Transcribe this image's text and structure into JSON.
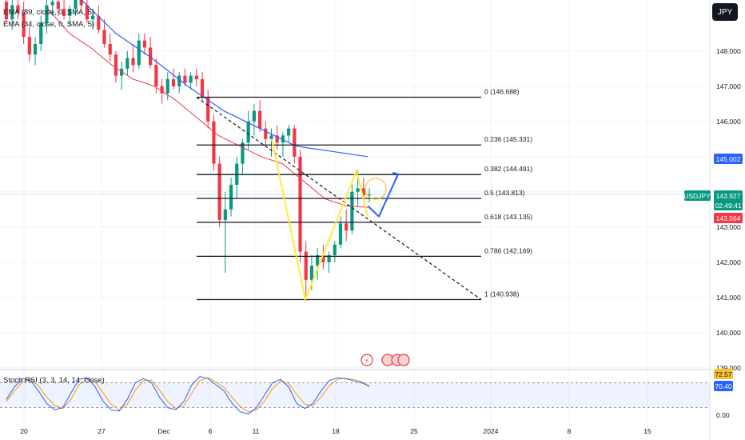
{
  "indicators": {
    "ema1": "EMA (89, close, 0, SMA, 5)",
    "ema2": "EMA (34, close, 0, SMA, 5)",
    "stoch": "Stoch RSI (3, 3, 14, 14, close)"
  },
  "currency_button": "JPY",
  "symbol": "USDJPY",
  "price_badges": {
    "last": "143.927",
    "countdown": "02:49:41",
    "ema_blue": "145.002",
    "ema_red": "143.564",
    "last_color": "#089981",
    "ema_blue_color": "#2962ff",
    "ema_red_color": "#f23645"
  },
  "stoch_badges": {
    "k": "72.57",
    "d": "70.40"
  },
  "chart_data": {
    "type": "candlestick",
    "y_axis": {
      "range": [
        138.95,
        149.45
      ],
      "ticks": [
        "139.000",
        "140.000",
        "141.000",
        "142.000",
        "143.000",
        "146.000",
        "147.000",
        "148.000"
      ]
    },
    "x_axis_labels": [
      "20",
      "27",
      "Dec",
      "6",
      "11",
      "18",
      "25",
      "2024",
      "8",
      "15"
    ],
    "fib_levels": [
      {
        "ratio": "0",
        "label": "0 (146.688)",
        "price": 146.688
      },
      {
        "ratio": "0.236",
        "label": "0.236 (145.331)",
        "price": 145.331
      },
      {
        "ratio": "0.382",
        "label": "0.382 (144.491)",
        "price": 144.491
      },
      {
        "ratio": "0.5",
        "label": "0.5 (143.813)",
        "price": 143.813
      },
      {
        "ratio": "0.618",
        "label": "0.618 (143.135)",
        "price": 143.135
      },
      {
        "ratio": "0.786",
        "label": "0.786 (142.169)",
        "price": 142.169
      },
      {
        "ratio": "1",
        "label": "1 (140.938)",
        "price": 140.938
      }
    ],
    "candles": [
      [
        149.4,
        149.6,
        148.8,
        148.9
      ],
      [
        148.9,
        149.5,
        148.6,
        149.3
      ],
      [
        149.3,
        149.6,
        148.9,
        149.1
      ],
      [
        149.1,
        149.4,
        148.2,
        148.4
      ],
      [
        148.4,
        148.7,
        147.7,
        147.9
      ],
      [
        147.9,
        148.4,
        147.6,
        148.2
      ],
      [
        148.2,
        149.0,
        148.0,
        148.8
      ],
      [
        148.8,
        149.5,
        148.5,
        149.3
      ],
      [
        149.3,
        149.6,
        149.0,
        149.4
      ],
      [
        149.4,
        149.7,
        149.0,
        149.2
      ],
      [
        149.2,
        149.5,
        148.9,
        149.0
      ],
      [
        149.0,
        149.3,
        148.7,
        149.2
      ],
      [
        149.2,
        149.6,
        149.0,
        149.5
      ],
      [
        149.5,
        149.8,
        149.2,
        149.3
      ],
      [
        149.3,
        149.5,
        148.8,
        148.9
      ],
      [
        148.9,
        149.2,
        148.6,
        149.0
      ],
      [
        149.0,
        149.3,
        148.5,
        148.6
      ],
      [
        148.6,
        148.9,
        148.1,
        148.2
      ],
      [
        148.2,
        148.5,
        147.7,
        147.9
      ],
      [
        147.9,
        148.0,
        147.1,
        147.3
      ],
      [
        147.3,
        147.7,
        146.9,
        147.5
      ],
      [
        147.5,
        148.0,
        147.3,
        147.8
      ],
      [
        147.8,
        148.2,
        147.4,
        147.6
      ],
      [
        147.6,
        148.5,
        147.5,
        148.3
      ],
      [
        148.3,
        148.5,
        147.9,
        148.1
      ],
      [
        148.1,
        148.4,
        147.5,
        147.6
      ],
      [
        147.6,
        147.8,
        146.8,
        147.0
      ],
      [
        147.0,
        147.2,
        146.5,
        146.8
      ],
      [
        146.8,
        147.4,
        146.6,
        147.2
      ],
      [
        147.2,
        147.5,
        146.9,
        147.0
      ],
      [
        147.0,
        147.4,
        146.8,
        147.3
      ],
      [
        147.3,
        147.5,
        147.0,
        147.1
      ],
      [
        147.1,
        147.4,
        146.9,
        147.3
      ],
      [
        147.3,
        147.5,
        147.0,
        147.2
      ],
      [
        147.2,
        147.4,
        146.6,
        146.7
      ],
      [
        146.7,
        146.9,
        145.8,
        146.0
      ],
      [
        146.0,
        146.2,
        144.6,
        144.8
      ],
      [
        144.8,
        145.0,
        143.0,
        143.2
      ],
      [
        143.2,
        144.0,
        141.7,
        143.5
      ],
      [
        143.5,
        144.4,
        143.3,
        144.2
      ],
      [
        144.2,
        145.0,
        143.8,
        144.8
      ],
      [
        144.8,
        145.5,
        144.5,
        145.4
      ],
      [
        145.4,
        146.3,
        145.2,
        146.0
      ],
      [
        146.0,
        146.5,
        145.6,
        146.3
      ],
      [
        146.3,
        146.6,
        145.7,
        145.8
      ],
      [
        145.8,
        146.0,
        145.3,
        145.5
      ],
      [
        145.5,
        145.8,
        145.0,
        145.6
      ],
      [
        145.6,
        145.9,
        145.2,
        145.4
      ],
      [
        145.4,
        145.7,
        145.0,
        145.6
      ],
      [
        145.6,
        145.9,
        145.4,
        145.8
      ],
      [
        145.8,
        145.9,
        144.8,
        145.0
      ],
      [
        145.0,
        145.2,
        142.0,
        142.3
      ],
      [
        142.3,
        142.6,
        140.9,
        141.5
      ],
      [
        141.5,
        142.2,
        141.2,
        141.9
      ],
      [
        141.9,
        142.4,
        141.5,
        142.2
      ],
      [
        142.2,
        142.5,
        141.8,
        142.0
      ],
      [
        142.0,
        142.3,
        141.7,
        142.2
      ],
      [
        142.2,
        142.6,
        142.0,
        142.5
      ],
      [
        142.5,
        143.3,
        142.4,
        143.1
      ],
      [
        143.1,
        143.5,
        142.6,
        142.9
      ],
      [
        142.9,
        144.2,
        142.8,
        144.0
      ],
      [
        144.0,
        144.6,
        143.6,
        144.1
      ],
      [
        144.1,
        144.4,
        143.7,
        143.9
      ],
      [
        143.9,
        144.1,
        143.7,
        143.93
      ]
    ],
    "ema89": [
      149.5,
      148.5,
      147.8,
      147.0,
      146.3,
      145.8,
      145.3,
      145.15,
      145.0
    ],
    "ema34": [
      149.2,
      148.5,
      148.1,
      147.6,
      147.2,
      147.0,
      146.6,
      146.1,
      145.6,
      145.3,
      145.0,
      144.8,
      144.3,
      143.8,
      143.6,
      143.56
    ],
    "zigzag_pattern": [
      145.5,
      140.94,
      144.6,
      143.3
    ],
    "projection": [
      143.6,
      143.3,
      144.5
    ],
    "stoch_rsi": {
      "upper": 80,
      "lower": 20,
      "k": [
        40,
        70,
        90,
        85,
        60,
        30,
        15,
        20,
        55,
        88,
        92,
        70,
        35,
        15,
        12,
        40,
        80,
        90,
        80,
        45,
        20,
        15,
        35,
        75,
        95,
        90,
        75,
        60,
        30,
        10,
        5,
        20,
        50,
        80,
        88,
        70,
        30,
        18,
        30,
        60,
        85,
        92,
        90,
        85,
        80,
        72.57
      ],
      "d": [
        35,
        60,
        82,
        88,
        72,
        45,
        25,
        18,
        40,
        75,
        90,
        82,
        55,
        28,
        15,
        28,
        62,
        85,
        86,
        62,
        35,
        18,
        25,
        55,
        85,
        92,
        82,
        68,
        45,
        22,
        10,
        14,
        35,
        66,
        84,
        78,
        52,
        28,
        25,
        45,
        72,
        88,
        91,
        88,
        83,
        70.4
      ],
      "ticks": [
        "0.00"
      ]
    }
  }
}
